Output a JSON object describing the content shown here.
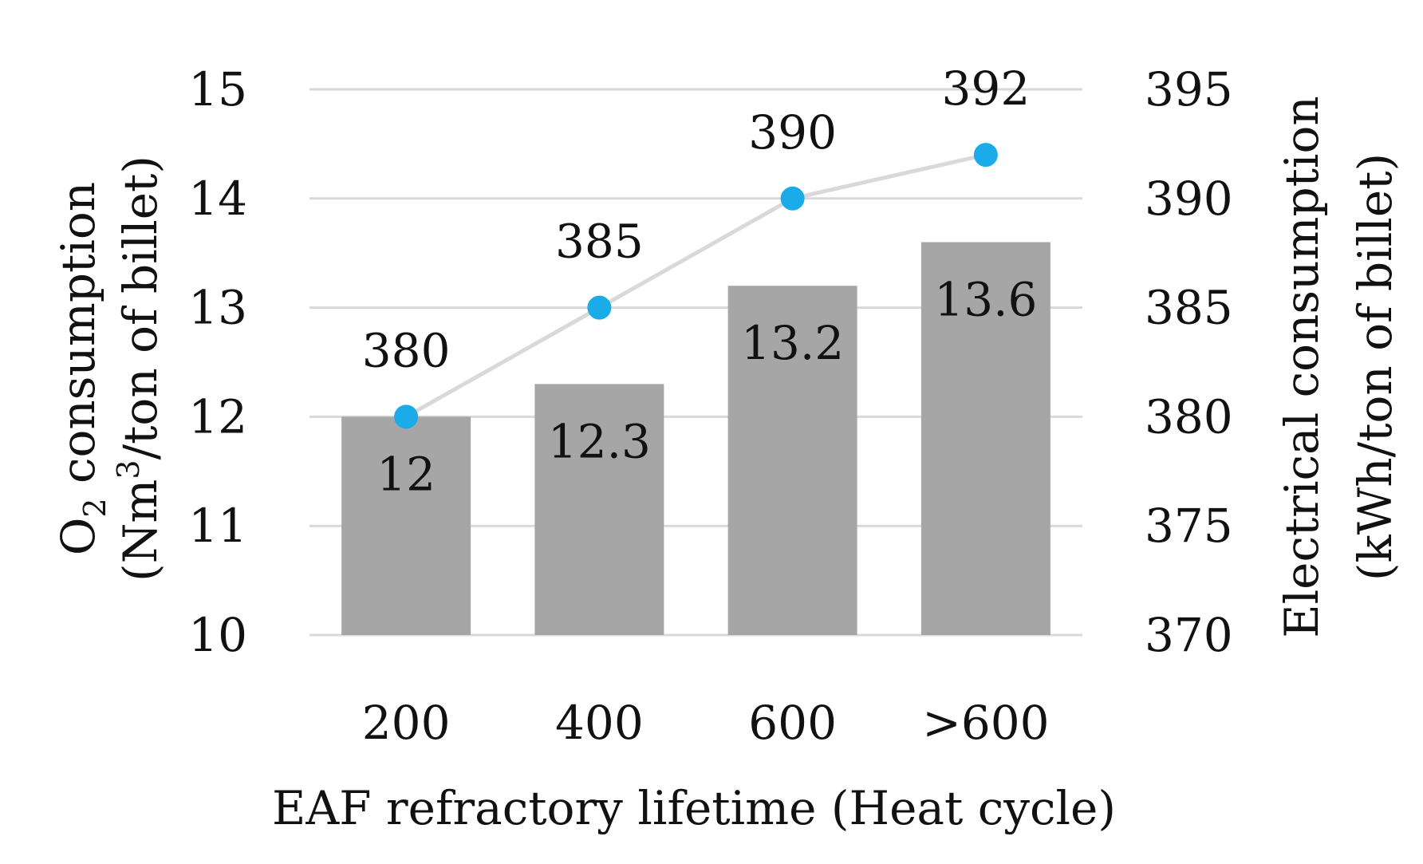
{
  "chart_data": {
    "type": "bar",
    "categories": [
      "200",
      "400",
      "600",
      ">600"
    ],
    "series": [
      {
        "name": "O2 consumption",
        "type": "bar",
        "axis": "left",
        "values": [
          12,
          12.3,
          13.2,
          13.6
        ],
        "labels": [
          "12",
          "12.3",
          "13.2",
          "13.6"
        ],
        "color": "#a6a6a6"
      },
      {
        "name": "Electrical consumption",
        "type": "line",
        "axis": "right",
        "values": [
          380,
          385,
          390,
          392
        ],
        "labels": [
          "380",
          "385",
          "390",
          "392"
        ],
        "color": "#1aabe8",
        "line_color": "#d9d9d9"
      }
    ],
    "xlabel": "EAF refractory lifetime (Heat cycle)",
    "ylabel_left": {
      "line1_pre": "O",
      "line1_sub": "2",
      "line1_post": " consumption",
      "line2_pre": "(Nm",
      "line2_sup": "3",
      "line2_post": "/ton of billet)"
    },
    "ylabel_right": {
      "line1": "Electrical consumption",
      "line2": "(kWh/ton of billet)"
    },
    "ylim_left": [
      10,
      15
    ],
    "yticks_left": [
      "10",
      "11",
      "12",
      "13",
      "14",
      "15"
    ],
    "ylim_right": [
      370,
      395
    ],
    "yticks_right": [
      "370",
      "375",
      "380",
      "385",
      "390",
      "395"
    ],
    "grid": true,
    "gridline_color": "#d9d9d9"
  }
}
